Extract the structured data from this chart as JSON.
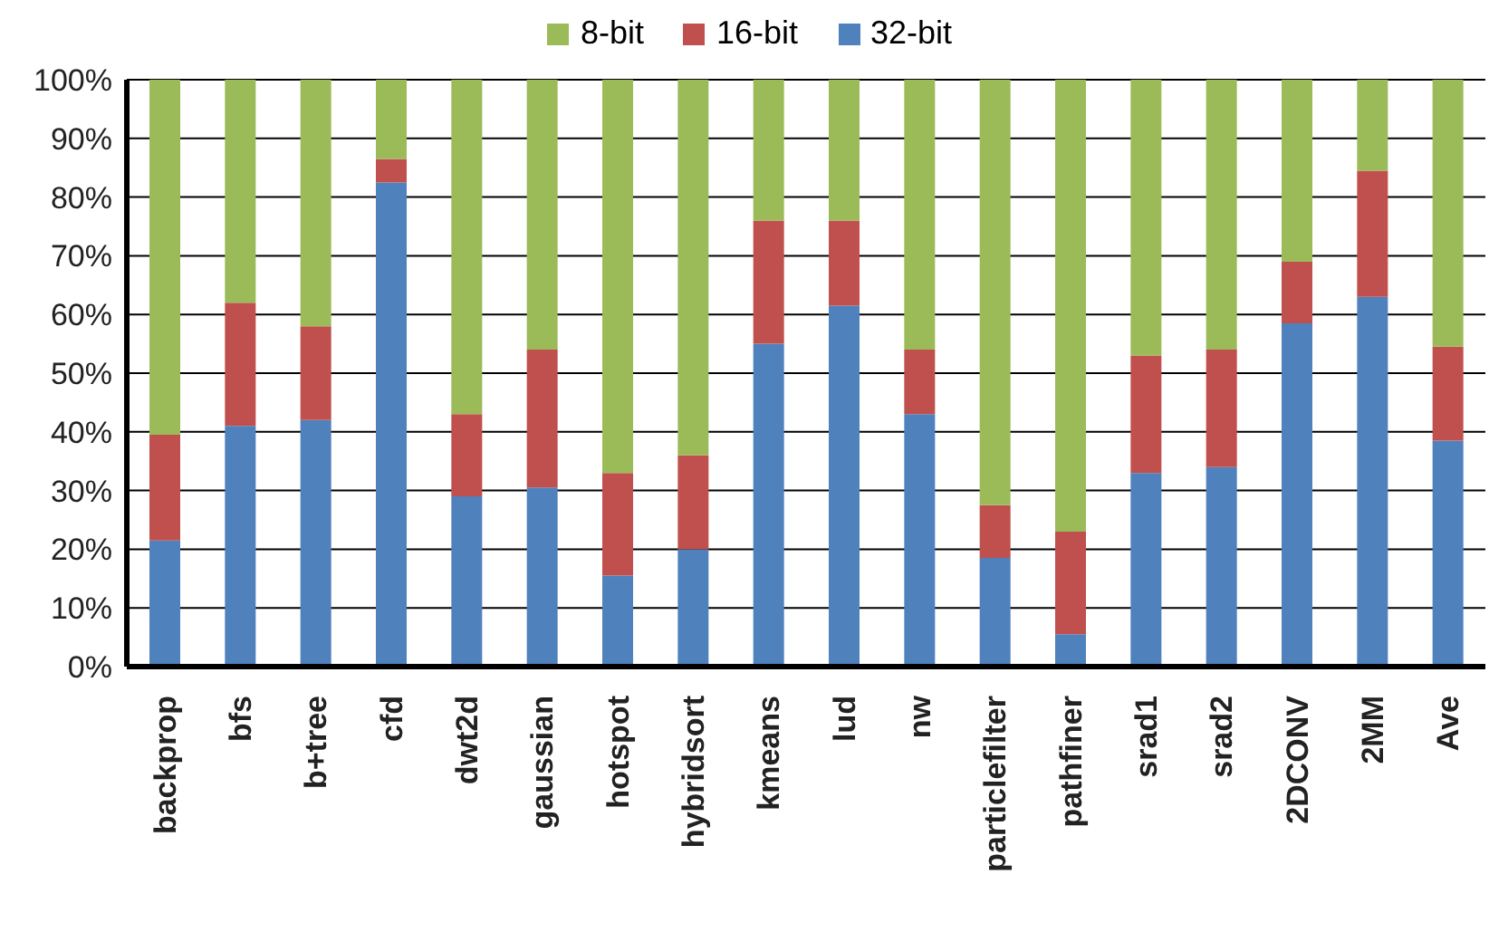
{
  "chart_data": {
    "type": "bar",
    "stacked": true,
    "categories": [
      "backprop",
      "bfs",
      "b+tree",
      "cfd",
      "dwt2d",
      "gaussian",
      "hotspot",
      "hybridsort",
      "kmeans",
      "lud",
      "nw",
      "particlefilter",
      "pathfiner",
      "srad1",
      "srad2",
      "2DCONV",
      "2MM",
      "Ave"
    ],
    "series": [
      {
        "name": "32-bit",
        "color": "#4f81bd",
        "values": [
          21.5,
          41,
          42,
          82.5,
          29,
          30.5,
          15.5,
          20,
          55,
          61.5,
          43,
          18.5,
          5.5,
          33,
          34,
          58.5,
          63,
          38.5
        ]
      },
      {
        "name": "16-bit",
        "color": "#c0504d",
        "values": [
          18,
          21,
          16,
          4,
          14,
          23.5,
          17.5,
          16,
          21,
          14.5,
          11,
          9,
          17.5,
          20,
          20,
          10.5,
          21.5,
          16
        ]
      },
      {
        "name": "8-bit",
        "color": "#9bbb59",
        "values": [
          60.5,
          38,
          42,
          13.5,
          57,
          46,
          67,
          64,
          24,
          24,
          46,
          72.5,
          77,
          47,
          46,
          31,
          15.5,
          45.5
        ]
      }
    ],
    "ylim": [
      0,
      100
    ],
    "yticks": [
      {
        "value": 0,
        "label": "0%"
      },
      {
        "value": 10,
        "label": "10%"
      },
      {
        "value": 20,
        "label": "20%"
      },
      {
        "value": 30,
        "label": "30%"
      },
      {
        "value": 40,
        "label": "40%"
      },
      {
        "value": 50,
        "label": "50%"
      },
      {
        "value": 60,
        "label": "60%"
      },
      {
        "value": 70,
        "label": "70%"
      },
      {
        "value": 80,
        "label": "80%"
      },
      {
        "value": 90,
        "label": "90%"
      },
      {
        "value": 100,
        "label": "100%"
      }
    ],
    "grid": "y",
    "legend": "top"
  }
}
